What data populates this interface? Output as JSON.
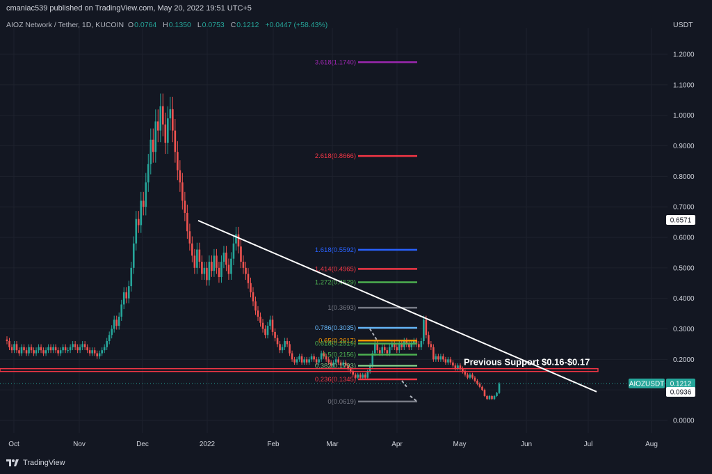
{
  "header": {
    "published": "cmaniac539 published on TradingView.com, May 20, 2022 19:51 UTC+5"
  },
  "legend": {
    "symbol": "AIOZ Network / Tether, 1D, KUCOIN",
    "open_label": "O",
    "open": "0.0764",
    "high_label": "H",
    "high": "0.1350",
    "low_label": "L",
    "low": "0.0753",
    "close_label": "C",
    "close": "0.1212",
    "change": "+0.0447 (+58.43%)"
  },
  "price_axis": {
    "currency": "USDT",
    "ticks": [
      "1.2000",
      "1.1000",
      "1.0000",
      "0.9000",
      "0.8000",
      "0.7000",
      "0.6000",
      "0.5000",
      "0.4000",
      "0.3000",
      "0.2000",
      "0.1000",
      "0.0000"
    ],
    "tick_values": [
      1.2,
      1.1,
      1.0,
      0.9,
      0.8,
      0.7,
      0.6,
      0.5,
      0.4,
      0.3,
      0.2,
      0.1,
      0.0
    ],
    "crosshair_label": "0.6571",
    "crosshair_value": 0.6571,
    "last_price_label": "0.1212",
    "last_price_value": 0.1212,
    "symbol_tag": "AIOZUSDT",
    "alt_label": "0.0936",
    "alt_value": 0.0936
  },
  "time_axis": {
    "labels": [
      "Oct",
      "Nov",
      "Dec",
      "2022",
      "Feb",
      "Mar",
      "Apr",
      "May",
      "Jun",
      "Jul",
      "Aug"
    ]
  },
  "annotations": {
    "support_text": "Previous Support $0.16-$0.17",
    "support_value": 0.165,
    "fib_levels": [
      {
        "label": "3.618(1.1740)",
        "value": 1.174,
        "color": "#9c27b0"
      },
      {
        "label": "2.618(0.8666)",
        "value": 0.8666,
        "color": "#f23645"
      },
      {
        "label": "1.618(0.5592)",
        "value": 0.5592,
        "color": "#2962ff"
      },
      {
        "label": "1.414(0.4965)",
        "value": 0.4965,
        "color": "#f23645"
      },
      {
        "label": "1.272(0.4529)",
        "value": 0.4529,
        "color": "#4caf50"
      },
      {
        "label": "1(0.3693)",
        "value": 0.3693,
        "color": "#787b86"
      },
      {
        "label": "0.786(0.3035)",
        "value": 0.3035,
        "color": "#64b5f6"
      },
      {
        "label": "0.65(0.2617)",
        "value": 0.2617,
        "color": "#ff9800"
      },
      {
        "label": "0.618(0.2519)",
        "value": 0.2519,
        "color": "#4caf50"
      },
      {
        "label": "0.5(0.2156)",
        "value": 0.2156,
        "color": "#4caf50"
      },
      {
        "label": "0.382(0.1793)",
        "value": 0.1793,
        "color": "#81c784"
      },
      {
        "label": "0.236(0.1345)",
        "value": 0.1345,
        "color": "#f23645"
      },
      {
        "label": "0(0.0619)",
        "value": 0.0619,
        "color": "#787b86"
      }
    ]
  },
  "footer": {
    "brand": "TradingView"
  },
  "colors": {
    "background": "#131722",
    "up": "#26a69a",
    "down": "#ef5350",
    "trendline": "#ffffff",
    "support": "#f23645"
  },
  "chart_data": {
    "type": "candlestick",
    "title": "AIOZ Network / Tether, 1D, KUCOIN",
    "ylabel": "USDT",
    "ylim": [
      -0.05,
      1.28
    ],
    "x_labels": [
      "Oct",
      "Nov",
      "Dec",
      "2022",
      "Feb",
      "Mar",
      "Apr",
      "May",
      "Jun",
      "Jul",
      "Aug"
    ],
    "series": [
      {
        "name": "AIOZUSDT",
        "close": [
          0.26,
          0.24,
          0.23,
          0.25,
          0.23,
          0.22,
          0.24,
          0.23,
          0.22,
          0.24,
          0.23,
          0.22,
          0.23,
          0.24,
          0.23,
          0.22,
          0.23,
          0.24,
          0.23,
          0.24,
          0.23,
          0.22,
          0.23,
          0.24,
          0.23,
          0.23,
          0.24,
          0.25,
          0.24,
          0.23,
          0.24,
          0.25,
          0.24,
          0.23,
          0.22,
          0.23,
          0.22,
          0.21,
          0.22,
          0.23,
          0.24,
          0.26,
          0.28,
          0.3,
          0.33,
          0.31,
          0.34,
          0.38,
          0.42,
          0.4,
          0.44,
          0.5,
          0.58,
          0.66,
          0.64,
          0.72,
          0.7,
          0.78,
          0.84,
          0.92,
          0.88,
          0.98,
          0.95,
          1.03,
          0.97,
          0.91,
          0.99,
          1.02,
          0.95,
          0.88,
          0.82,
          0.78,
          0.72,
          0.68,
          0.62,
          0.58,
          0.54,
          0.5,
          0.56,
          0.52,
          0.48,
          0.5,
          0.46,
          0.52,
          0.49,
          0.54,
          0.5,
          0.47,
          0.52,
          0.55,
          0.51,
          0.48,
          0.53,
          0.58,
          0.61,
          0.57,
          0.52,
          0.5,
          0.48,
          0.45,
          0.42,
          0.39,
          0.36,
          0.34,
          0.32,
          0.3,
          0.28,
          0.31,
          0.33,
          0.29,
          0.27,
          0.25,
          0.23,
          0.24,
          0.26,
          0.25,
          0.22,
          0.2,
          0.19,
          0.2,
          0.21,
          0.19,
          0.2,
          0.19,
          0.2,
          0.21,
          0.2,
          0.19,
          0.2,
          0.22,
          0.21,
          0.2,
          0.19,
          0.18,
          0.19,
          0.2,
          0.19,
          0.18,
          0.19,
          0.18,
          0.17,
          0.16,
          0.15,
          0.14,
          0.15,
          0.14,
          0.15,
          0.14,
          0.16,
          0.18,
          0.22,
          0.25,
          0.23,
          0.22,
          0.24,
          0.23,
          0.22,
          0.24,
          0.25,
          0.24,
          0.23,
          0.25,
          0.24,
          0.26,
          0.25,
          0.24,
          0.25,
          0.26,
          0.25,
          0.24,
          0.26,
          0.33,
          0.28,
          0.25,
          0.24,
          0.2,
          0.21,
          0.2,
          0.21,
          0.2,
          0.19,
          0.2,
          0.19,
          0.18,
          0.17,
          0.18,
          0.17,
          0.16,
          0.15,
          0.14,
          0.15,
          0.14,
          0.13,
          0.12,
          0.11,
          0.1,
          0.08,
          0.07,
          0.08,
          0.07,
          0.08,
          0.09,
          0.12
        ],
        "points_plotted": "daily candles approximated from image"
      }
    ]
  }
}
